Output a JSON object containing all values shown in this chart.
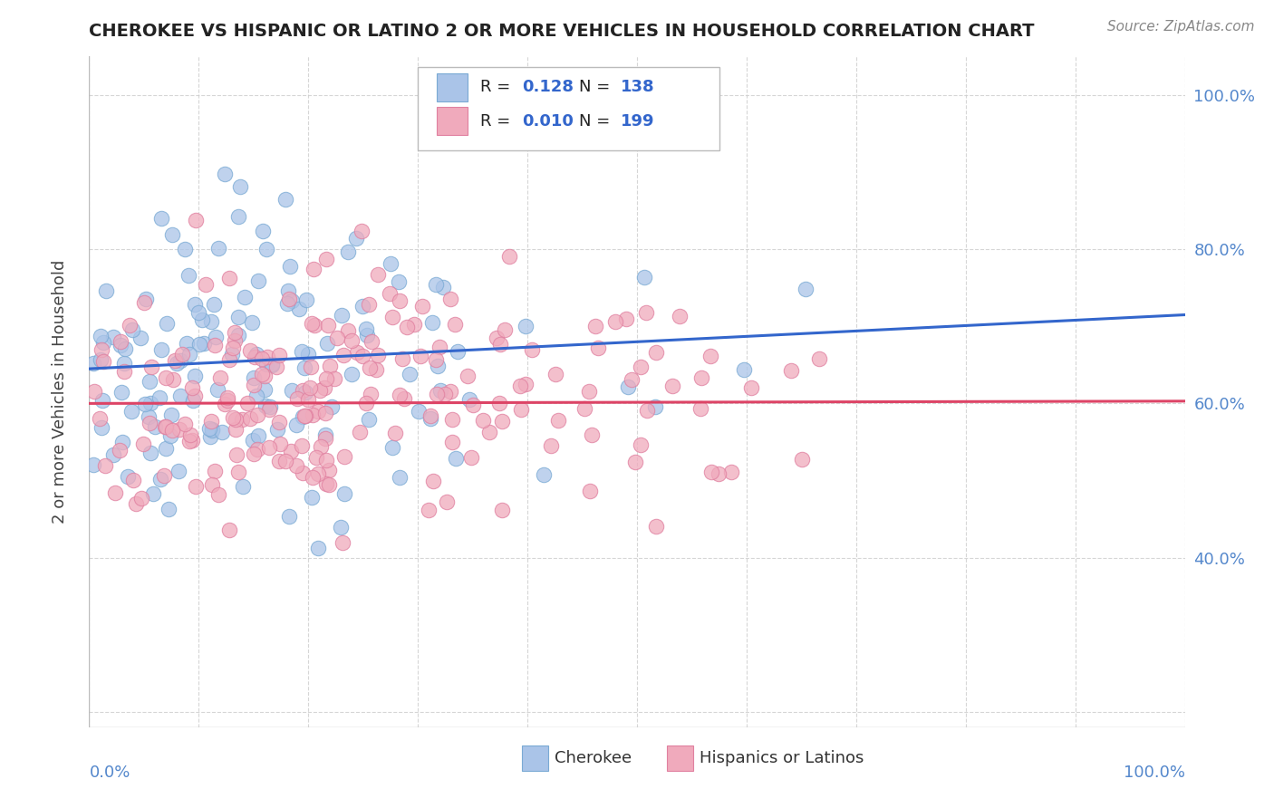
{
  "title": "CHEROKEE VS HISPANIC OR LATINO 2 OR MORE VEHICLES IN HOUSEHOLD CORRELATION CHART",
  "source": "Source: ZipAtlas.com",
  "ylabel": "2 or more Vehicles in Household",
  "cherokee_R": "0.128",
  "cherokee_N": "138",
  "hispanic_R": "0.010",
  "hispanic_N": "199",
  "cherokee_color": "#aac4e8",
  "cherokee_edge_color": "#7aaad4",
  "hispanic_color": "#f0aabc",
  "hispanic_edge_color": "#e080a0",
  "cherokee_line_color": "#3366cc",
  "hispanic_line_color": "#dd4466",
  "background_color": "#ffffff",
  "grid_color": "#cccccc",
  "title_color": "#222222",
  "axis_label_color": "#5588cc",
  "tick_label_color": "#5588cc",
  "seed_cherokee": 42,
  "seed_hispanic": 77,
  "cherokee_line_y0": 0.645,
  "cherokee_line_y1": 0.715,
  "hispanic_line_y0": 0.6,
  "hispanic_line_y1": 0.603,
  "ylim_min": 0.18,
  "ylim_max": 1.05,
  "xlim_min": 0.0,
  "xlim_max": 1.0,
  "right_yticks": [
    1.0,
    0.8,
    0.6,
    0.4
  ],
  "right_yticklabels": [
    "100.0%",
    "80.0%",
    "60.0%",
    "40.0%"
  ]
}
